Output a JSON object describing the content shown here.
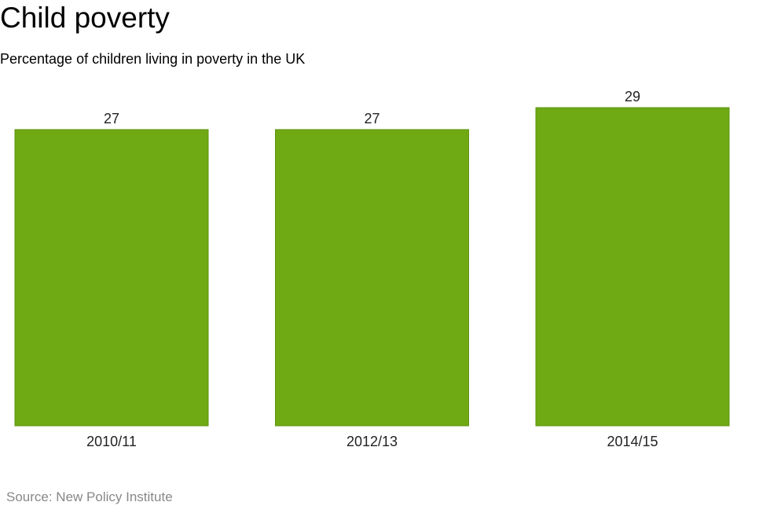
{
  "chart_data": {
    "type": "bar",
    "title": "Child poverty",
    "subtitle": "Percentage of children living in poverty in the UK",
    "categories": [
      "2010/11",
      "2012/13",
      "2014/15"
    ],
    "values": [
      27,
      27,
      29
    ],
    "value_labels": [
      "27",
      "27",
      "29"
    ],
    "xlabel": "",
    "ylabel": "",
    "ylim": [
      0,
      29
    ],
    "grid": false,
    "bar_color": "#6fa914",
    "bar_edge_color": "#5e9410",
    "source": "Source: New Policy Institute"
  }
}
